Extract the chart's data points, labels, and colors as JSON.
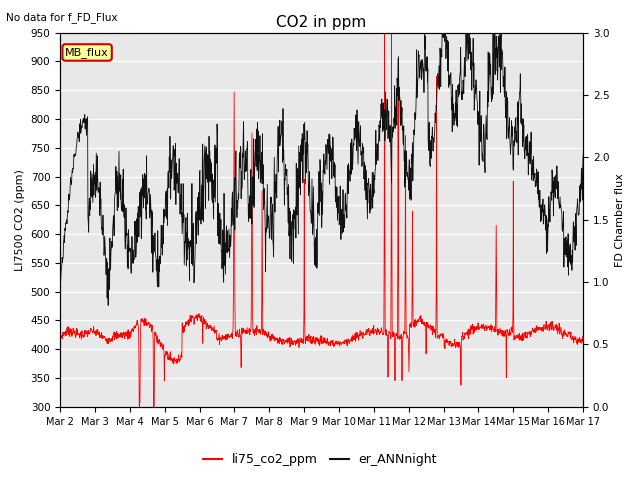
{
  "title": "CO2 in ppm",
  "top_left_text": "No data for f_FD_Flux",
  "ylabel_left": "LI7500 CO2 (ppm)",
  "ylabel_right": "FD Chamber flux",
  "ylim_left": [
    300,
    950
  ],
  "ylim_right": [
    0.0,
    3.0
  ],
  "yticks_left": [
    300,
    350,
    400,
    450,
    500,
    550,
    600,
    650,
    700,
    750,
    800,
    850,
    900,
    950
  ],
  "yticks_right": [
    0.0,
    0.5,
    1.0,
    1.5,
    2.0,
    2.5,
    3.0
  ],
  "xtick_labels": [
    "Mar 2",
    "Mar 3",
    "Mar 4",
    "Mar 5",
    "Mar 6",
    "Mar 7",
    "Mar 8",
    "Mar 9",
    "Mar 10",
    "Mar 11",
    "Mar 12",
    "Mar 13",
    "Mar 14",
    "Mar 15",
    "Mar 16",
    "Mar 17"
  ],
  "legend_entries": [
    "li75_co2_ppm",
    "er_ANNnight"
  ],
  "color_red": "#ff0000",
  "color_black": "#111111",
  "bg_color": "#e8e8e8",
  "grid_color": "#ffffff",
  "annotation_box_color": "#ffff99",
  "annotation_box_edge": "#cc0000",
  "annotation_text": "MB_flux",
  "n_points": 1500
}
